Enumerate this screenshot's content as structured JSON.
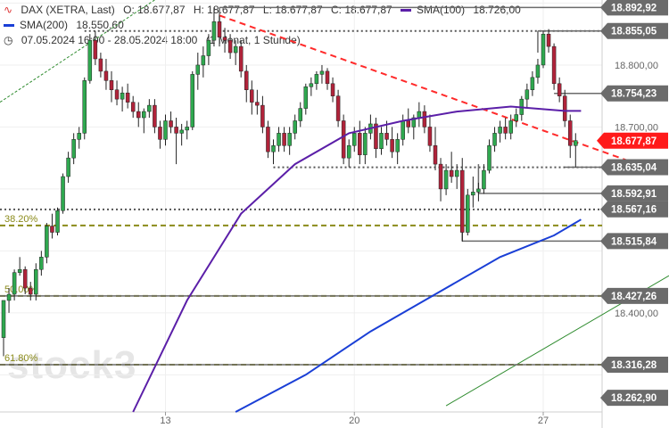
{
  "header": {
    "symbol": "DAX (XETRA, Last)",
    "open": "O: 18.677,87",
    "high": "H: 18.677,87",
    "low": "L: 18.677,87",
    "close": "C: 18.677,87",
    "sma100_label": "SMA(100)",
    "sma100_value": "18.726,00",
    "sma200_label": "SMA(200)",
    "sma200_value": "18.550,60",
    "range": "07.05.2024 16:00 - 28.05.2024 18:00",
    "interval": "(1 Monat, 1 Stunde)"
  },
  "watermark": "stock3",
  "colors": {
    "sma100": "#5b1fa8",
    "sma200": "#1a3fd6",
    "trend_red": "#ff2a2a",
    "fib": "#8b8b1a",
    "last_price": "#ff1a1a",
    "level_box": "#6b6b6b"
  },
  "chart_data": {
    "type": "candlestick",
    "yaxis_ticks": [
      "18.800,00",
      "18.700,00",
      "18.400,00"
    ],
    "ylim": [
      18240,
      18905
    ],
    "x_ticks": [
      {
        "label": "13",
        "x": 30
      },
      {
        "label": "20",
        "x": 65
      },
      {
        "label": "27",
        "x": 100
      }
    ],
    "xlim": [
      0,
      120
    ],
    "price_levels": [
      {
        "label": "18.892,92",
        "value": 18892.92
      },
      {
        "label": "18.855,05",
        "value": 18855.05
      },
      {
        "label": "18.754,23",
        "value": 18754.23
      },
      {
        "label": "18.677,87",
        "value": 18677.87
      },
      {
        "label": "18.635,04",
        "value": 18635.04
      },
      {
        "label": "18.592,91",
        "value": 18592.91
      },
      {
        "label": "18.567,16",
        "value": 18567.16
      },
      {
        "label": "18.515,84",
        "value": 18515.84
      },
      {
        "label": "18.427,26",
        "value": 18427.26
      },
      {
        "label": "18.316,28",
        "value": 18316.28
      },
      {
        "label": "18.262,90",
        "value": 18262.9
      }
    ],
    "fib_levels": [
      {
        "label": "38.20%",
        "value": 18541
      },
      {
        "label": "50.00%",
        "value": 18427.26
      },
      {
        "label": "61.80%",
        "value": 18316.28
      }
    ],
    "candles": [
      [
        18360,
        18420,
        18330,
        18420
      ],
      [
        18420,
        18440,
        18400,
        18430
      ],
      [
        18430,
        18470,
        18420,
        18465
      ],
      [
        18465,
        18490,
        18460,
        18470
      ],
      [
        18470,
        18475,
        18430,
        18440
      ],
      [
        18440,
        18450,
        18420,
        18430
      ],
      [
        18430,
        18480,
        18420,
        18470
      ],
      [
        18470,
        18500,
        18460,
        18490
      ],
      [
        18490,
        18545,
        18480,
        18540
      ],
      [
        18540,
        18560,
        18520,
        18530
      ],
      [
        18530,
        18570,
        18525,
        18565
      ],
      [
        18565,
        18625,
        18560,
        18620
      ],
      [
        18620,
        18660,
        18610,
        18650
      ],
      [
        18650,
        18690,
        18640,
        18680
      ],
      [
        18680,
        18700,
        18665,
        18690
      ],
      [
        18690,
        18780,
        18680,
        18775
      ],
      [
        18775,
        18850,
        18770,
        18840
      ],
      [
        18840,
        18855,
        18800,
        18810
      ],
      [
        18810,
        18820,
        18780,
        18790
      ],
      [
        18790,
        18810,
        18760,
        18775
      ],
      [
        18775,
        18790,
        18740,
        18760
      ],
      [
        18760,
        18775,
        18735,
        18745
      ],
      [
        18745,
        18765,
        18725,
        18755
      ],
      [
        18755,
        18770,
        18730,
        18740
      ],
      [
        18740,
        18750,
        18715,
        18725
      ],
      [
        18725,
        18740,
        18700,
        18715
      ],
      [
        18715,
        18730,
        18690,
        18725
      ],
      [
        18725,
        18745,
        18715,
        18735
      ],
      [
        18735,
        18745,
        18690,
        18700
      ],
      [
        18700,
        18710,
        18665,
        18680
      ],
      [
        18680,
        18720,
        18670,
        18710
      ],
      [
        18710,
        18725,
        18690,
        18700
      ],
      [
        18700,
        18715,
        18640,
        18690
      ],
      [
        18690,
        18705,
        18670,
        18695
      ],
      [
        18695,
        18710,
        18680,
        18700
      ],
      [
        18700,
        18790,
        18695,
        18785
      ],
      [
        18785,
        18820,
        18760,
        18800
      ],
      [
        18800,
        18830,
        18780,
        18815
      ],
      [
        18815,
        18850,
        18800,
        18840
      ],
      [
        18840,
        18893,
        18830,
        18870
      ],
      [
        18870,
        18880,
        18830,
        18845
      ],
      [
        18845,
        18860,
        18820,
        18840
      ],
      [
        18840,
        18850,
        18810,
        18820
      ],
      [
        18820,
        18840,
        18800,
        18830
      ],
      [
        18830,
        18840,
        18780,
        18790
      ],
      [
        18790,
        18800,
        18740,
        18760
      ],
      [
        18760,
        18775,
        18720,
        18740
      ],
      [
        18740,
        18760,
        18720,
        18735
      ],
      [
        18735,
        18750,
        18690,
        18700
      ],
      [
        18700,
        18710,
        18650,
        18660
      ],
      [
        18660,
        18680,
        18640,
        18670
      ],
      [
        18670,
        18700,
        18660,
        18690
      ],
      [
        18690,
        18700,
        18660,
        18670
      ],
      [
        18670,
        18700,
        18655,
        18690
      ],
      [
        18690,
        18720,
        18680,
        18710
      ],
      [
        18710,
        18740,
        18700,
        18730
      ],
      [
        18730,
        18770,
        18720,
        18765
      ],
      [
        18765,
        18780,
        18750,
        18770
      ],
      [
        18770,
        18790,
        18760,
        18785
      ],
      [
        18785,
        18800,
        18770,
        18790
      ],
      [
        18790,
        18795,
        18760,
        18770
      ],
      [
        18770,
        18780,
        18740,
        18750
      ],
      [
        18750,
        18760,
        18700,
        18710
      ],
      [
        18710,
        18720,
        18640,
        18650
      ],
      [
        18650,
        18680,
        18635,
        18670
      ],
      [
        18670,
        18700,
        18660,
        18690
      ],
      [
        18690,
        18710,
        18640,
        18655
      ],
      [
        18655,
        18700,
        18640,
        18690
      ],
      [
        18690,
        18720,
        18680,
        18705
      ],
      [
        18705,
        18715,
        18650,
        18665
      ],
      [
        18665,
        18700,
        18655,
        18690
      ],
      [
        18690,
        18710,
        18670,
        18680
      ],
      [
        18680,
        18700,
        18650,
        18660
      ],
      [
        18660,
        18690,
        18640,
        18680
      ],
      [
        18680,
        18720,
        18670,
        18710
      ],
      [
        18710,
        18730,
        18690,
        18700
      ],
      [
        18700,
        18720,
        18680,
        18715
      ],
      [
        18715,
        18740,
        18700,
        18725
      ],
      [
        18725,
        18735,
        18690,
        18700
      ],
      [
        18700,
        18720,
        18660,
        18670
      ],
      [
        18670,
        18700,
        18630,
        18640
      ],
      [
        18640,
        18650,
        18580,
        18600
      ],
      [
        18600,
        18640,
        18590,
        18630
      ],
      [
        18630,
        18660,
        18610,
        18620
      ],
      [
        18620,
        18640,
        18600,
        18630
      ],
      [
        18630,
        18650,
        18515,
        18530
      ],
      [
        18530,
        18600,
        18525,
        18590
      ],
      [
        18590,
        18620,
        18570,
        18595
      ],
      [
        18595,
        18610,
        18580,
        18600
      ],
      [
        18600,
        18640,
        18592,
        18630
      ],
      [
        18630,
        18680,
        18625,
        18670
      ],
      [
        18670,
        18700,
        18660,
        18690
      ],
      [
        18690,
        18710,
        18675,
        18700
      ],
      [
        18700,
        18715,
        18680,
        18690
      ],
      [
        18690,
        18720,
        18680,
        18710
      ],
      [
        18710,
        18730,
        18700,
        18720
      ],
      [
        18720,
        18750,
        18710,
        18745
      ],
      [
        18745,
        18770,
        18730,
        18760
      ],
      [
        18760,
        18790,
        18750,
        18780
      ],
      [
        18780,
        18810,
        18770,
        18800
      ],
      [
        18800,
        18855,
        18795,
        18850
      ],
      [
        18850,
        18858,
        18820,
        18830
      ],
      [
        18830,
        18835,
        18760,
        18770
      ],
      [
        18770,
        18780,
        18740,
        18750
      ],
      [
        18750,
        18760,
        18700,
        18710
      ],
      [
        18710,
        18720,
        18650,
        18670
      ],
      [
        18670,
        18690,
        18635,
        18678
      ]
    ],
    "sma100": {
      "name": "SMA(100)",
      "points": [
        [
          24,
          18240
        ],
        [
          34,
          18420
        ],
        [
          44,
          18560
        ],
        [
          54,
          18640
        ],
        [
          64,
          18690
        ],
        [
          74,
          18710
        ],
        [
          84,
          18725
        ],
        [
          94,
          18733
        ],
        [
          104,
          18726
        ],
        [
          107,
          18726
        ]
      ]
    },
    "sma200": {
      "name": "SMA(200)",
      "points": [
        [
          43,
          18240
        ],
        [
          56,
          18300
        ],
        [
          68,
          18370
        ],
        [
          80,
          18430
        ],
        [
          92,
          18490
        ],
        [
          102,
          18525
        ],
        [
          107,
          18550.6
        ]
      ]
    }
  }
}
